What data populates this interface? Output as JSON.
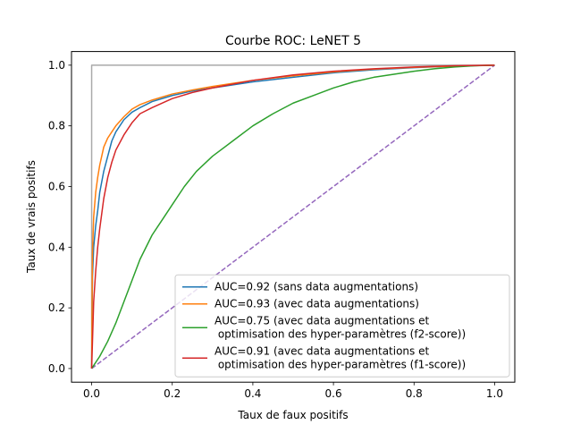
{
  "chart_data": {
    "type": "line",
    "title": "Courbe ROC:  LeNET 5",
    "xlabel": "Taux de faux positifs",
    "ylabel": "Taux de vrais positifs",
    "xlim": [
      -0.05,
      1.05
    ],
    "ylim": [
      -0.045,
      1.045
    ],
    "xticks": [
      "0.0",
      "0.2",
      "0.4",
      "0.6",
      "0.8",
      "1.0"
    ],
    "yticks": [
      "0.0",
      "0.2",
      "0.4",
      "0.6",
      "0.8",
      "1.0"
    ],
    "grid": false,
    "legend_position": "lower right",
    "series": [
      {
        "name": "AUC=0.92 (sans data augmentations)",
        "color": "#1f77b4",
        "dash": false,
        "x": [
          0,
          0.002,
          0.005,
          0.01,
          0.015,
          0.02,
          0.03,
          0.04,
          0.05,
          0.06,
          0.08,
          0.1,
          0.12,
          0.15,
          0.2,
          0.25,
          0.3,
          0.4,
          0.5,
          0.6,
          0.7,
          0.8,
          0.9,
          1.0
        ],
        "y": [
          0,
          0.3,
          0.4,
          0.47,
          0.52,
          0.58,
          0.65,
          0.7,
          0.75,
          0.78,
          0.82,
          0.845,
          0.86,
          0.88,
          0.9,
          0.915,
          0.925,
          0.945,
          0.96,
          0.975,
          0.985,
          0.992,
          0.997,
          1.0
        ]
      },
      {
        "name": "AUC=0.93 (avec data augmentations)",
        "color": "#ff7f0e",
        "dash": false,
        "x": [
          0,
          0.002,
          0.005,
          0.01,
          0.015,
          0.02,
          0.03,
          0.04,
          0.05,
          0.06,
          0.08,
          0.1,
          0.12,
          0.15,
          0.2,
          0.25,
          0.3,
          0.4,
          0.5,
          0.6,
          0.7,
          0.8,
          0.9,
          1.0
        ],
        "y": [
          0,
          0.38,
          0.5,
          0.58,
          0.63,
          0.67,
          0.73,
          0.76,
          0.78,
          0.8,
          0.83,
          0.855,
          0.87,
          0.885,
          0.905,
          0.918,
          0.93,
          0.95,
          0.965,
          0.978,
          0.987,
          0.993,
          0.997,
          1.0
        ]
      },
      {
        "name": "AUC=0.75 (avec data augmentations et\n optimisation des hyper-paramètres (f2-score))",
        "color": "#2ca02c",
        "dash": false,
        "x": [
          0,
          0.02,
          0.04,
          0.06,
          0.08,
          0.1,
          0.12,
          0.15,
          0.18,
          0.2,
          0.23,
          0.26,
          0.3,
          0.35,
          0.4,
          0.45,
          0.5,
          0.55,
          0.6,
          0.65,
          0.7,
          0.75,
          0.8,
          0.85,
          0.9,
          0.95,
          1.0
        ],
        "y": [
          0,
          0.04,
          0.09,
          0.15,
          0.22,
          0.29,
          0.36,
          0.44,
          0.5,
          0.54,
          0.6,
          0.65,
          0.7,
          0.75,
          0.8,
          0.84,
          0.875,
          0.9,
          0.925,
          0.945,
          0.96,
          0.97,
          0.98,
          0.988,
          0.994,
          0.998,
          1.0
        ]
      },
      {
        "name": "AUC=0.91 (avec data augmentations et\n optimisation des hyper-paramètres (f1-score))",
        "color": "#d62728",
        "dash": false,
        "x": [
          0,
          0.005,
          0.01,
          0.015,
          0.02,
          0.03,
          0.04,
          0.05,
          0.06,
          0.08,
          0.1,
          0.12,
          0.15,
          0.2,
          0.25,
          0.3,
          0.4,
          0.5,
          0.6,
          0.7,
          0.8,
          0.9,
          1.0
        ],
        "y": [
          0,
          0.22,
          0.32,
          0.4,
          0.46,
          0.56,
          0.63,
          0.68,
          0.72,
          0.77,
          0.81,
          0.84,
          0.86,
          0.89,
          0.91,
          0.925,
          0.95,
          0.968,
          0.98,
          0.988,
          0.994,
          0.998,
          1.0
        ]
      },
      {
        "name": "",
        "color": "#9467bd",
        "dash": true,
        "x": [
          0,
          1
        ],
        "y": [
          0,
          1
        ]
      },
      {
        "name": "",
        "color": "#aaaaaa",
        "dash": false,
        "x": [
          0,
          0,
          1
        ],
        "y": [
          0,
          1,
          1
        ]
      }
    ]
  }
}
